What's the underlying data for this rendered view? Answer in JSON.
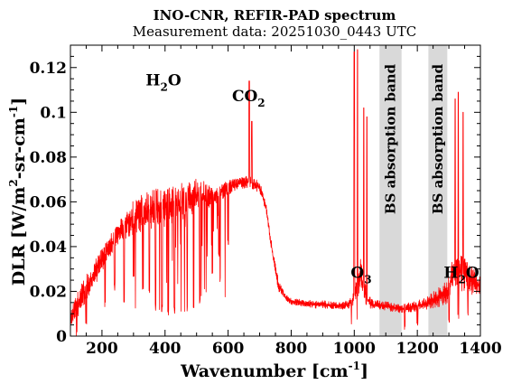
{
  "chart_data": {
    "type": "line",
    "title": "INO-CNR, REFIR-PAD spectrum",
    "subtitle": "Measurement data: 20251030_0443 UTC",
    "xlabel": {
      "main": "Wavenumber [cm",
      "sup": "-1",
      "end": "]"
    },
    "ylabel": {
      "a": "DLR [W/m",
      "sup1": "2",
      "b": "-sr-cm",
      "sup2": "-1",
      "c": "]"
    },
    "xlim": [
      100,
      1400
    ],
    "ylim": [
      0,
      0.13
    ],
    "xticks": [
      200,
      400,
      600,
      800,
      1000,
      1200,
      1400
    ],
    "xtick_labels": [
      "200",
      "400",
      "600",
      "800",
      "1000",
      "1200",
      "1400"
    ],
    "yticks": [
      0,
      0.02,
      0.04,
      0.06,
      0.08,
      0.1,
      0.12
    ],
    "ytick_labels": [
      "0",
      "0.02",
      "0.04",
      "0.06",
      "0.08",
      "0.1",
      "0.12"
    ],
    "grid": false,
    "line_color": "#ff0000",
    "band_color": "#d9d9d9",
    "bands": [
      {
        "x0": 1080,
        "x1": 1150,
        "label": "BS absorption band"
      },
      {
        "x0": 1235,
        "x1": 1295,
        "label": "BS absorption band"
      }
    ],
    "annotations": [
      {
        "x": 395,
        "y": 0.112,
        "base": "H",
        "sub": "2",
        "rest": "O"
      },
      {
        "x": 665,
        "y": 0.105,
        "base": "CO",
        "sub": "2",
        "rest": ""
      },
      {
        "x": 1022,
        "y": 0.026,
        "base": "O",
        "sub": "3",
        "rest": ""
      },
      {
        "x": 1340,
        "y": 0.026,
        "base": "H",
        "sub": "2",
        "rest": "O"
      }
    ],
    "series": [
      {
        "envelope": [
          [
            100,
            0.004,
            0.012
          ],
          [
            130,
            0.01,
            0.022
          ],
          [
            160,
            0.018,
            0.03
          ],
          [
            190,
            0.026,
            0.037
          ],
          [
            220,
            0.034,
            0.044
          ],
          [
            250,
            0.04,
            0.05
          ],
          [
            280,
            0.044,
            0.058
          ],
          [
            310,
            0.046,
            0.062
          ],
          [
            340,
            0.047,
            0.064
          ],
          [
            370,
            0.048,
            0.066
          ],
          [
            400,
            0.049,
            0.067
          ],
          [
            430,
            0.05,
            0.068
          ],
          [
            460,
            0.052,
            0.069
          ],
          [
            490,
            0.054,
            0.071
          ],
          [
            520,
            0.056,
            0.07
          ],
          [
            550,
            0.058,
            0.066
          ],
          [
            580,
            0.061,
            0.068
          ],
          [
            610,
            0.064,
            0.07
          ],
          [
            640,
            0.066,
            0.071
          ],
          [
            670,
            0.066,
            0.072
          ],
          [
            700,
            0.064,
            0.069
          ],
          [
            720,
            0.055,
            0.06
          ],
          [
            740,
            0.035,
            0.04
          ],
          [
            760,
            0.02,
            0.025
          ],
          [
            780,
            0.016,
            0.019
          ],
          [
            800,
            0.014,
            0.017
          ],
          [
            850,
            0.013,
            0.016
          ],
          [
            900,
            0.012,
            0.016
          ],
          [
            950,
            0.012,
            0.015
          ],
          [
            980,
            0.012,
            0.016
          ],
          [
            1000,
            0.014,
            0.02
          ],
          [
            1020,
            0.02,
            0.035
          ],
          [
            1040,
            0.013,
            0.02
          ],
          [
            1060,
            0.012,
            0.016
          ],
          [
            1080,
            0.012,
            0.016
          ],
          [
            1150,
            0.01,
            0.014
          ],
          [
            1200,
            0.011,
            0.016
          ],
          [
            1235,
            0.012,
            0.018
          ],
          [
            1295,
            0.014,
            0.025
          ],
          [
            1320,
            0.02,
            0.04
          ],
          [
            1350,
            0.02,
            0.035
          ],
          [
            1380,
            0.018,
            0.03
          ],
          [
            1400,
            0.016,
            0.028
          ]
        ],
        "dips": [
          [
            120,
            0.0
          ],
          [
            150,
            0.005
          ],
          [
            210,
            0.012
          ],
          [
            240,
            0.02
          ],
          [
            270,
            0.015
          ],
          [
            300,
            0.025
          ],
          [
            330,
            0.02
          ],
          [
            350,
            0.018
          ],
          [
            370,
            0.012
          ],
          [
            390,
            0.01
          ],
          [
            410,
            0.008
          ],
          [
            430,
            0.01
          ],
          [
            450,
            0.009
          ],
          [
            470,
            0.011
          ],
          [
            490,
            0.012
          ],
          [
            510,
            0.014
          ],
          [
            530,
            0.016
          ],
          [
            550,
            0.028
          ],
          [
            570,
            0.035
          ],
          [
            600,
            0.04
          ],
          [
            990,
            0.002
          ],
          [
            1010,
            0.004
          ],
          [
            1160,
            0.002
          ],
          [
            1200,
            0.003
          ],
          [
            1300,
            0.004
          ],
          [
            1330,
            0.006
          ],
          [
            1360,
            0.008
          ]
        ],
        "peaks": [
          [
            667,
            0.114
          ],
          [
            675,
            0.096
          ],
          [
            1000,
            0.127
          ],
          [
            1010,
            0.128
          ],
          [
            1030,
            0.102
          ],
          [
            1040,
            0.098
          ],
          [
            1320,
            0.106
          ],
          [
            1330,
            0.109
          ],
          [
            1345,
            0.1
          ]
        ]
      }
    ]
  }
}
